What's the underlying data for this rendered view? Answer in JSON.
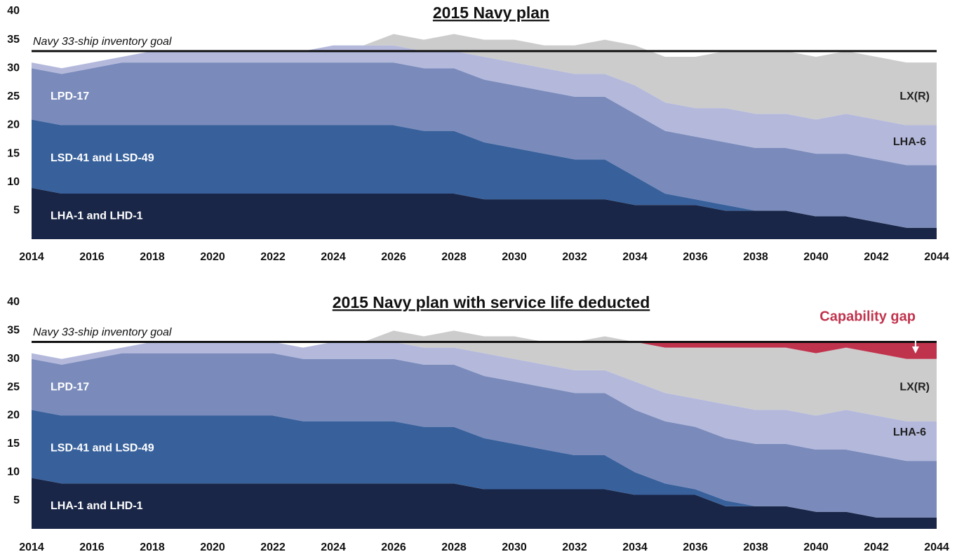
{
  "chart_data": [
    {
      "type": "area",
      "title": "2015 Navy plan",
      "x": [
        2014,
        2015,
        2016,
        2017,
        2018,
        2019,
        2020,
        2021,
        2022,
        2023,
        2024,
        2025,
        2026,
        2027,
        2028,
        2029,
        2030,
        2031,
        2032,
        2033,
        2034,
        2035,
        2036,
        2037,
        2038,
        2039,
        2040,
        2041,
        2042,
        2043,
        2044
      ],
      "xlim": [
        2014,
        2044
      ],
      "xticks": [
        2014,
        2016,
        2018,
        2020,
        2022,
        2024,
        2026,
        2028,
        2030,
        2032,
        2034,
        2036,
        2038,
        2040,
        2042,
        2044
      ],
      "ylim": [
        0,
        40
      ],
      "yticks": [
        5,
        10,
        15,
        20,
        25,
        30,
        35,
        40
      ],
      "goal": {
        "value": 33,
        "label": "Navy 33-ship inventory goal"
      },
      "series": [
        {
          "name": "LHA-1 and LHD-1",
          "color": "#1a2647",
          "values": [
            9,
            8,
            8,
            8,
            8,
            8,
            8,
            8,
            8,
            8,
            8,
            8,
            8,
            8,
            8,
            7,
            7,
            7,
            7,
            7,
            6,
            6,
            6,
            5,
            5,
            5,
            4,
            4,
            3,
            2,
            2
          ]
        },
        {
          "name": "LSD-41 and LSD-49",
          "color": "#38619c",
          "values": [
            12,
            12,
            12,
            12,
            12,
            12,
            12,
            12,
            12,
            12,
            12,
            12,
            12,
            11,
            11,
            10,
            9,
            8,
            7,
            7,
            5,
            2,
            1,
            1,
            0,
            0,
            0,
            0,
            0,
            0,
            0
          ]
        },
        {
          "name": "LPD-17",
          "color": "#7a8bbb",
          "values": [
            9,
            9,
            10,
            11,
            11,
            11,
            11,
            11,
            11,
            11,
            11,
            11,
            11,
            11,
            11,
            11,
            11,
            11,
            11,
            11,
            11,
            11,
            11,
            11,
            11,
            11,
            11,
            11,
            11,
            11,
            11
          ]
        },
        {
          "name": "LHA-6",
          "color": "#b4b9dc",
          "values": [
            1,
            1,
            1,
            1,
            2,
            2,
            2,
            2,
            2,
            2,
            3,
            3,
            3,
            3,
            3,
            4,
            4,
            4,
            4,
            4,
            5,
            5,
            5,
            6,
            6,
            6,
            6,
            7,
            7,
            7,
            7
          ]
        },
        {
          "name": "LX(R)",
          "color": "#cccccc",
          "values": [
            0,
            0,
            0,
            0,
            0,
            0,
            0,
            0,
            0,
            0,
            0,
            0,
            2,
            2,
            3,
            3,
            4,
            4,
            5,
            6,
            7,
            8,
            9,
            10,
            11,
            11,
            11,
            11,
            11,
            11,
            11
          ]
        }
      ]
    },
    {
      "type": "area",
      "title": "2015 Navy plan with service life deducted",
      "x": [
        2014,
        2015,
        2016,
        2017,
        2018,
        2019,
        2020,
        2021,
        2022,
        2023,
        2024,
        2025,
        2026,
        2027,
        2028,
        2029,
        2030,
        2031,
        2032,
        2033,
        2034,
        2035,
        2036,
        2037,
        2038,
        2039,
        2040,
        2041,
        2042,
        2043,
        2044
      ],
      "xlim": [
        2014,
        2044
      ],
      "xticks": [
        2014,
        2016,
        2018,
        2020,
        2022,
        2024,
        2026,
        2028,
        2030,
        2032,
        2034,
        2036,
        2038,
        2040,
        2042,
        2044
      ],
      "ylim": [
        0,
        40
      ],
      "yticks": [
        5,
        10,
        15,
        20,
        25,
        30,
        35,
        40
      ],
      "goal": {
        "value": 33,
        "label": "Navy 33-ship inventory goal"
      },
      "series": [
        {
          "name": "LHA-1 and LHD-1",
          "color": "#1a2647",
          "values": [
            9,
            8,
            8,
            8,
            8,
            8,
            8,
            8,
            8,
            8,
            8,
            8,
            8,
            8,
            8,
            7,
            7,
            7,
            7,
            7,
            6,
            6,
            6,
            4,
            4,
            4,
            3,
            3,
            2,
            2,
            2
          ]
        },
        {
          "name": "LSD-41 and LSD-49",
          "color": "#38619c",
          "values": [
            12,
            12,
            12,
            12,
            12,
            12,
            12,
            12,
            12,
            11,
            11,
            11,
            11,
            10,
            10,
            9,
            8,
            7,
            6,
            6,
            4,
            2,
            1,
            1,
            0,
            0,
            0,
            0,
            0,
            0,
            0
          ]
        },
        {
          "name": "LPD-17",
          "color": "#7a8bbb",
          "values": [
            9,
            9,
            10,
            11,
            11,
            11,
            11,
            11,
            11,
            11,
            11,
            11,
            11,
            11,
            11,
            11,
            11,
            11,
            11,
            11,
            11,
            11,
            11,
            11,
            11,
            11,
            11,
            11,
            11,
            10,
            10
          ]
        },
        {
          "name": "LHA-6",
          "color": "#b4b9dc",
          "values": [
            1,
            1,
            1,
            1,
            2,
            2,
            2,
            2,
            2,
            2,
            3,
            3,
            3,
            3,
            3,
            4,
            4,
            4,
            4,
            4,
            5,
            5,
            5,
            6,
            6,
            6,
            6,
            7,
            7,
            7,
            7
          ]
        },
        {
          "name": "LX(R)",
          "color": "#cccccc",
          "values": [
            0,
            0,
            0,
            0,
            0,
            0,
            0,
            0,
            0,
            0,
            0,
            0,
            2,
            2,
            3,
            3,
            4,
            4,
            5,
            6,
            7,
            8,
            9,
            10,
            11,
            11,
            11,
            11,
            11,
            11,
            11
          ]
        },
        {
          "name": "Capability gap",
          "color": "#c0334d",
          "values": [
            0,
            0,
            0,
            0,
            0,
            0,
            0,
            0,
            0,
            0,
            0,
            0,
            0,
            0,
            0,
            0,
            0,
            0,
            0,
            0,
            0,
            1,
            1,
            1,
            1,
            1,
            2,
            1,
            2,
            3,
            3
          ]
        }
      ]
    }
  ]
}
